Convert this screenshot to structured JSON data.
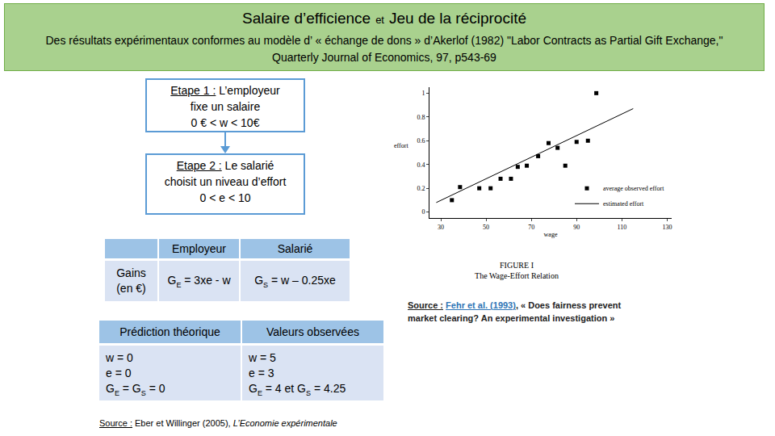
{
  "header": {
    "title": "Salaire d’efficience",
    "joiner": "et",
    "title2": "Jeu de la réciprocité",
    "subtitle": "Des résultats expérimentaux conformes au modèle d’ « échange de dons » d’Akerlof (1982) \"Labor Contracts as Partial Gift Exchange,\" Quarterly Journal of Economics, 97, p543-69"
  },
  "steps": [
    {
      "label": "Etape 1 :",
      "lines": [
        "L’employeur",
        "fixe un salaire",
        "0 € < w < 10€"
      ]
    },
    {
      "label": "Etape 2 :",
      "lines": [
        "Le salarié",
        "choisit un niveau d’effort",
        "0  < e < 10"
      ]
    }
  ],
  "gains_table": {
    "row_header": [
      "Gains",
      "(en €)"
    ],
    "columns": [
      "Employeur",
      "Salarié"
    ],
    "values": [
      [
        {
          "t": "G"
        },
        {
          "sub": "E"
        },
        {
          "t": " = 3xe - w"
        }
      ],
      [
        {
          "t": "G"
        },
        {
          "sub": "S"
        },
        {
          "t": " = w – 0.25xe"
        }
      ]
    ]
  },
  "outcome_table": {
    "columns": [
      "Prédiction théorique",
      "Valeurs observées"
    ],
    "cells": [
      [
        "w = 0",
        "e = 0",
        [
          {
            "t": "G"
          },
          {
            "sub": "E"
          },
          {
            "t": " = G"
          },
          {
            "sub": "S"
          },
          {
            "t": " = 0"
          }
        ]
      ],
      [
        "w = 5",
        "e = 3",
        [
          {
            "t": "G"
          },
          {
            "sub": "E"
          },
          {
            "t": " = 4 et G"
          },
          {
            "sub": "S"
          },
          {
            "t": " = 4.25"
          }
        ]
      ]
    ]
  },
  "source": {
    "label": "Source :",
    "text": " Eber et Willinger (2005), ",
    "italic": "L’Economie expérimentale"
  },
  "chart_source": {
    "label": "Source :",
    "link": "Fehr et al. (1993)",
    "text": ", « Does fairness prevent market clearing? An experimental investigation »"
  },
  "chart_data": {
    "type": "scatter",
    "caption": [
      "FIGURE I",
      "The Wage-Effort Relation"
    ],
    "x_label": "wage",
    "y_label": "effort",
    "xlim": [
      25,
      132
    ],
    "xticks": [
      30,
      50,
      70,
      90,
      110,
      130
    ],
    "ylim": [
      -0.05,
      1.05
    ],
    "yticks": [
      0,
      0.2,
      0.4,
      0.6,
      0.8,
      1
    ],
    "grid": false,
    "legend": "lower right",
    "series": [
      {
        "name": "average observed effort",
        "type": "scatter",
        "marker": "square",
        "color": "#000000",
        "x": [
          34.9,
          38.5,
          47,
          52,
          56.4,
          61,
          64,
          68,
          73,
          77.6,
          81.6,
          85,
          90,
          95,
          98.7
        ],
        "values": [
          0.1,
          0.21,
          0.2,
          0.2,
          0.28,
          0.28,
          0.38,
          0.39,
          0.47,
          0.58,
          0.54,
          0.39,
          0.59,
          0.6,
          1.0
        ]
      },
      {
        "name": "estimated effort",
        "type": "line",
        "line_style": "solid",
        "color": "#000000",
        "x": [
          28,
          115
        ],
        "values": [
          0.08,
          0.87
        ]
      }
    ]
  }
}
